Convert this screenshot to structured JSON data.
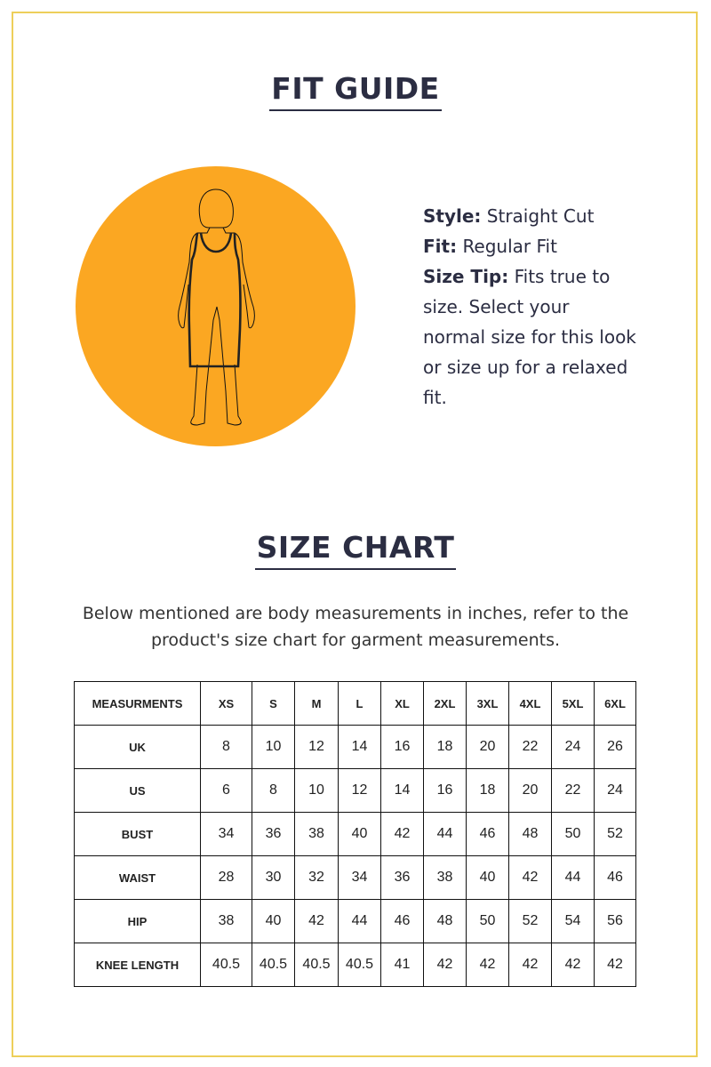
{
  "fit_guide": {
    "title": "FIT GUIDE",
    "circle_color": "#fba722",
    "illustration": "woman-in-sleeveless-knee-length-dress",
    "style_label": "Style:",
    "style_value": "Straight Cut",
    "fit_label": "Fit:",
    "fit_value": "Regular Fit",
    "tip_label": "Size Tip:",
    "tip_value": "Fits true to size. Select your normal size for this look or size up for a relaxed fit."
  },
  "size_chart": {
    "title": "SIZE CHART",
    "description": "Below mentioned are body measurements in inches, refer to the product's size chart for garment measurements.",
    "headers": [
      "MEASURMENTS",
      "XS",
      "S",
      "M",
      "L",
      "XL",
      "2XL",
      "3XL",
      "4XL",
      "5XL",
      "6XL"
    ],
    "rows": [
      {
        "label": "UK",
        "values": [
          "8",
          "10",
          "12",
          "14",
          "16",
          "18",
          "20",
          "22",
          "24",
          "26"
        ]
      },
      {
        "label": "US",
        "values": [
          "6",
          "8",
          "10",
          "12",
          "14",
          "16",
          "18",
          "20",
          "22",
          "24"
        ]
      },
      {
        "label": "BUST",
        "values": [
          "34",
          "36",
          "38",
          "40",
          "42",
          "44",
          "46",
          "48",
          "50",
          "52"
        ]
      },
      {
        "label": "WAIST",
        "values": [
          "28",
          "30",
          "32",
          "34",
          "36",
          "38",
          "40",
          "42",
          "44",
          "46"
        ]
      },
      {
        "label": "HIP",
        "values": [
          "38",
          "40",
          "42",
          "44",
          "46",
          "48",
          "50",
          "52",
          "54",
          "56"
        ]
      },
      {
        "label": "KNEE  LENGTH",
        "values": [
          "40.5",
          "40.5",
          "40.5",
          "40.5",
          "41",
          "42",
          "42",
          "42",
          "42",
          "42"
        ]
      }
    ]
  }
}
